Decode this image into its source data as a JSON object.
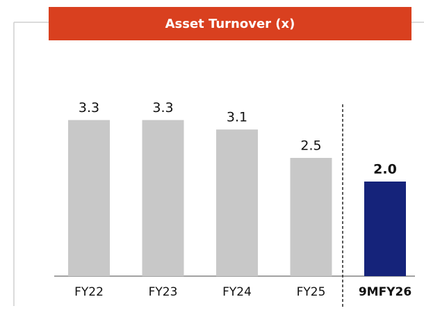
{
  "chart_data": {
    "type": "bar",
    "title": "Asset Turnover (x)",
    "categories": [
      "FY22",
      "FY23",
      "FY24",
      "FY25",
      "9MFY26"
    ],
    "values": [
      3.3,
      3.3,
      3.1,
      2.5,
      2.0
    ],
    "value_labels": [
      "3.3",
      "3.3",
      "3.1",
      "2.5",
      "2.0"
    ],
    "colors": [
      "#c8c8c8",
      "#c8c8c8",
      "#c8c8c8",
      "#c8c8c8",
      "#15237a"
    ]
  }
}
